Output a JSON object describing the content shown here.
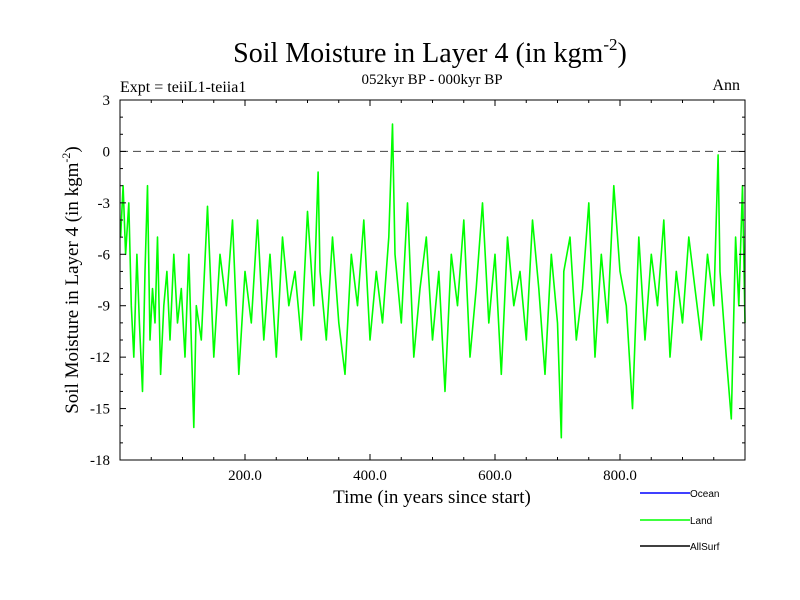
{
  "chart_data": {
    "type": "line",
    "title": "Soil Moisture in Layer 4 (in kgm",
    "title_sup": "-2",
    "title_close": ")",
    "subtitle": "052kyr BP - 000kyr BP",
    "left_label": "Expt = teiiL1-teiia1",
    "right_label": "Ann",
    "xlabel": "Time (in years since start)",
    "ylabel": "Soil Moisture in Layer 4 (in kgm",
    "ylabel_sup": "-2",
    "ylabel_close": ")",
    "xlim": [
      0,
      1000
    ],
    "ylim": [
      -18,
      3
    ],
    "x_ticks": [
      "200.0",
      "400.0",
      "600.0",
      "800.0"
    ],
    "x_tick_values": [
      200,
      400,
      600,
      800
    ],
    "y_ticks": [
      "3",
      "0",
      "-3",
      "-6",
      "-9",
      "-12",
      "-15",
      "-18"
    ],
    "y_tick_values": [
      3,
      0,
      -3,
      -6,
      -9,
      -12,
      -15,
      -18
    ],
    "reference_line": 0,
    "legend_placement": "bottom-right, below plot",
    "colors": {
      "Ocean": "#0000ff",
      "Land": "#00ff00",
      "AllSurf": "#000000"
    },
    "series": [
      {
        "name": "Land",
        "x": [
          1,
          5,
          9,
          14,
          18,
          22,
          27,
          31,
          36,
          40,
          44,
          48,
          52,
          56,
          60,
          65,
          70,
          75,
          80,
          86,
          92,
          98,
          104,
          110,
          118,
          122,
          130,
          140,
          150,
          160,
          170,
          180,
          190,
          200,
          210,
          220,
          230,
          240,
          250,
          260,
          270,
          280,
          290,
          300,
          310,
          317,
          320,
          330,
          340,
          350,
          360,
          370,
          380,
          390,
          400,
          410,
          420,
          430,
          436,
          440,
          450,
          460,
          470,
          480,
          490,
          500,
          510,
          520,
          530,
          540,
          550,
          560,
          570,
          580,
          590,
          600,
          610,
          620,
          630,
          640,
          650,
          660,
          670,
          680,
          690,
          700,
          706,
          710,
          720,
          730,
          740,
          750,
          760,
          770,
          780,
          790,
          800,
          810,
          820,
          830,
          840,
          850,
          860,
          870,
          880,
          890,
          900,
          910,
          920,
          930,
          940,
          950,
          957,
          960,
          970,
          978,
          985,
          990,
          996,
          1000
        ],
        "y": [
          -5,
          -2,
          -6,
          -3,
          -9,
          -12,
          -6,
          -10,
          -14,
          -7,
          -2,
          -11,
          -8,
          -10,
          -5,
          -13,
          -9,
          -7,
          -11,
          -6,
          -10,
          -8,
          -12,
          -6,
          -16.1,
          -9,
          -11,
          -3.2,
          -12,
          -6,
          -9,
          -4,
          -13,
          -7,
          -10,
          -4,
          -11,
          -6,
          -12,
          -5,
          -9,
          -7,
          -11,
          -3.5,
          -9,
          -1.2,
          -7,
          -11,
          -5,
          -10,
          -13,
          -6,
          -9,
          -4,
          -11,
          -7,
          -10,
          -5,
          1.6,
          -6,
          -10,
          -3,
          -12,
          -8,
          -5,
          -11,
          -7,
          -14,
          -6,
          -9,
          -4,
          -12,
          -8,
          -3,
          -10,
          -6,
          -13,
          -5,
          -9,
          -7,
          -11,
          -4,
          -8,
          -13,
          -6,
          -10,
          -16.7,
          -7,
          -5,
          -11,
          -8,
          -3,
          -12,
          -6,
          -10,
          -2,
          -7,
          -9,
          -15,
          -5,
          -11,
          -6,
          -9,
          -4,
          -12,
          -7,
          -10,
          -5,
          -8,
          -11,
          -6,
          -9,
          -0.2,
          -7,
          -12,
          -15.6,
          -5,
          -9,
          -2,
          -10
        ]
      }
    ]
  },
  "legend": [
    {
      "label": "Ocean",
      "color": "#0000ff"
    },
    {
      "label": "Land",
      "color": "#00ff00"
    },
    {
      "label": "AllSurf",
      "color": "#000000"
    }
  ]
}
